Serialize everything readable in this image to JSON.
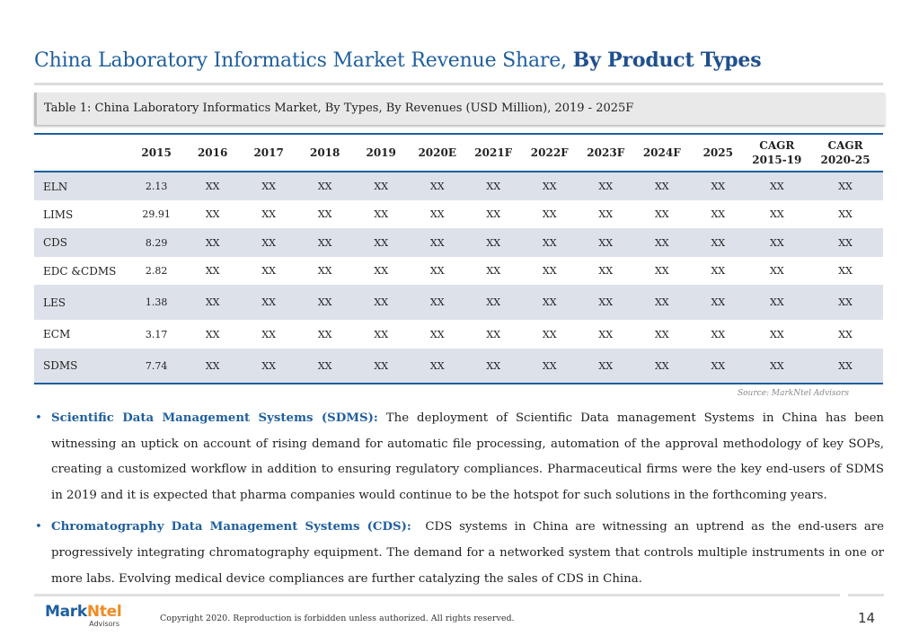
{
  "title": {
    "regular": "China Laboratory Informatics Market Revenue Share,",
    "bold": "By Product Types"
  },
  "table_caption": "Table 1: China Laboratory Informatics Market, By Types, By Revenues (USD Million), 2019 - 2025F",
  "table": {
    "headers": [
      [
        ""
      ],
      [
        "2015"
      ],
      [
        "2016"
      ],
      [
        "2017"
      ],
      [
        "2018"
      ],
      [
        "2019"
      ],
      [
        "2020E"
      ],
      [
        "2021F"
      ],
      [
        "2022F"
      ],
      [
        "2023F"
      ],
      [
        "2024F"
      ],
      [
        "2025"
      ],
      [
        "CAGR",
        "2015-19"
      ],
      [
        "CAGR",
        "2020-25"
      ]
    ],
    "rows": [
      {
        "name": "ELN",
        "values": [
          "2.13",
          "XX",
          "XX",
          "XX",
          "XX",
          "XX",
          "XX",
          "XX",
          "XX",
          "XX",
          "XX",
          "XX",
          "XX"
        ]
      },
      {
        "name": "LIMS",
        "values": [
          "29.91",
          "XX",
          "XX",
          "XX",
          "XX",
          "XX",
          "XX",
          "XX",
          "XX",
          "XX",
          "XX",
          "XX",
          "XX"
        ]
      },
      {
        "name": "CDS",
        "values": [
          "8.29",
          "XX",
          "XX",
          "XX",
          "XX",
          "XX",
          "XX",
          "XX",
          "XX",
          "XX",
          "XX",
          "XX",
          "XX"
        ]
      },
      {
        "name": "EDC &CDMS",
        "values": [
          "2.82",
          "XX",
          "XX",
          "XX",
          "XX",
          "XX",
          "XX",
          "XX",
          "XX",
          "XX",
          "XX",
          "XX",
          "XX"
        ]
      },
      {
        "name": "LES",
        "values": [
          "1.38",
          "XX",
          "XX",
          "XX",
          "XX",
          "XX",
          "XX",
          "XX",
          "XX",
          "XX",
          "XX",
          "XX",
          "XX"
        ]
      },
      {
        "name": "ECM",
        "values": [
          "3.17",
          "XX",
          "XX",
          "XX",
          "XX",
          "XX",
          "XX",
          "XX",
          "XX",
          "XX",
          "XX",
          "XX",
          "XX"
        ]
      },
      {
        "name": "SDMS",
        "values": [
          "7.74",
          "XX",
          "XX",
          "XX",
          "XX",
          "XX",
          "XX",
          "XX",
          "XX",
          "XX",
          "XX",
          "XX",
          "XX"
        ]
      }
    ]
  },
  "source": "Source: MarkNtel Advisors",
  "bullets": [
    {
      "lead": "Scientific Data Management Systems (SDMS):",
      "text": "The deployment of Scientific Data management Systems in China has been witnessing an uptick on account of rising demand for automatic file processing, automation of the approval methodology of key SOPs, creating a customized workflow in addition to ensuring regulatory compliances. Pharmaceutical firms were the key end-users of SDMS in 2019 and it is expected that pharma companies would continue to be the hotspot for such solutions in the forthcoming years."
    },
    {
      "lead": "Chromatography Data Management Systems (CDS):",
      "text": "CDS systems in China are witnessing an uptrend as the end-users are progressively integrating chromatography equipment. The demand for a networked system that controls multiple instruments in one or more labs. Evolving medical device compliances are further catalyzing the sales of CDS in China."
    }
  ],
  "footer": {
    "logo_mark_a": "Mark",
    "logo_mark_b": "Ntel",
    "logo_sub": "Advisors",
    "copyright": "Copyright 2020. Reproduction is forbidden unless authorized. All rights reserved.",
    "page_number": "14"
  },
  "colors": {
    "accent": "#1f5f9e",
    "row_shade": "#dde2ea",
    "logo_orange": "#f08a24"
  }
}
